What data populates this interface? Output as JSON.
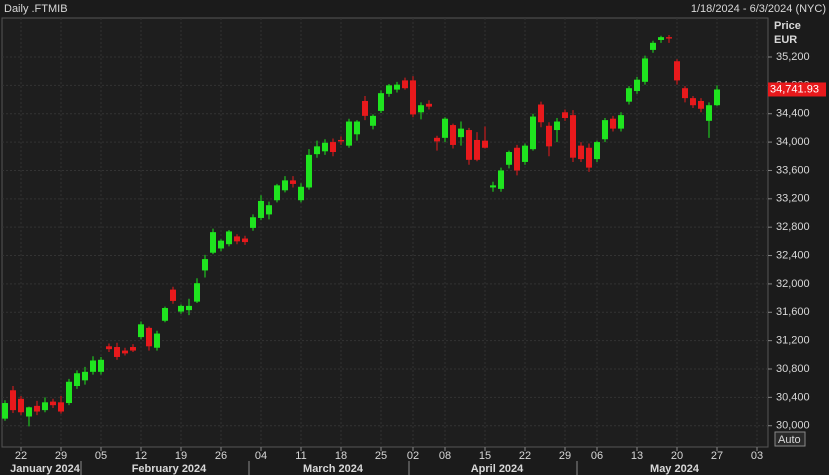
{
  "chart_data": {
    "type": "candlestick",
    "title": "Daily .FTMIB",
    "date_range": "1/18/2024 - 6/3/2024 (NYC)",
    "y_axis_label": "Price",
    "y_axis_unit": "EUR",
    "scale_button": "Auto",
    "up_color": "#1fe41f",
    "down_color": "#e8191c",
    "grid": true,
    "x": [
      "2024-01-18",
      "2024-01-19",
      "2024-01-22",
      "2024-01-23",
      "2024-01-24",
      "2024-01-25",
      "2024-01-26",
      "2024-01-29",
      "2024-01-30",
      "2024-01-31",
      "2024-02-01",
      "2024-02-02",
      "2024-02-05",
      "2024-02-06",
      "2024-02-07",
      "2024-02-08",
      "2024-02-09",
      "2024-02-12",
      "2024-02-13",
      "2024-02-14",
      "2024-02-15",
      "2024-02-16",
      "2024-02-19",
      "2024-02-20",
      "2024-02-21",
      "2024-02-22",
      "2024-02-23",
      "2024-02-26",
      "2024-02-27",
      "2024-02-28",
      "2024-02-29",
      "2024-03-01",
      "2024-03-04",
      "2024-03-05",
      "2024-03-06",
      "2024-03-07",
      "2024-03-08",
      "2024-03-11",
      "2024-03-12",
      "2024-03-13",
      "2024-03-14",
      "2024-03-15",
      "2024-03-18",
      "2024-03-19",
      "2024-03-20",
      "2024-03-21",
      "2024-03-22",
      "2024-03-25",
      "2024-03-26",
      "2024-03-27",
      "2024-03-28",
      "2024-04-02",
      "2024-04-03",
      "2024-04-04",
      "2024-04-05",
      "2024-04-08",
      "2024-04-09",
      "2024-04-10",
      "2024-04-11",
      "2024-04-12",
      "2024-04-15",
      "2024-04-16",
      "2024-04-17",
      "2024-04-18",
      "2024-04-19",
      "2024-04-22",
      "2024-04-23",
      "2024-04-24",
      "2024-04-25",
      "2024-04-26",
      "2024-04-29",
      "2024-04-30",
      "2024-05-02",
      "2024-05-03",
      "2024-05-06",
      "2024-05-07",
      "2024-05-08",
      "2024-05-09",
      "2024-05-10",
      "2024-05-13",
      "2024-05-14",
      "2024-05-15",
      "2024-05-16",
      "2024-05-17",
      "2024-05-20",
      "2024-05-21",
      "2024-05-22",
      "2024-05-23",
      "2024-05-24",
      "2024-05-27"
    ],
    "open": [
      30100,
      30500,
      30380,
      30130,
      30280,
      30220,
      30340,
      30330,
      30320,
      30560,
      30640,
      30760,
      30760,
      31120,
      31110,
      31060,
      31110,
      31250,
      31380,
      31100,
      31480,
      31920,
      31610,
      31630,
      31750,
      32190,
      32440,
      32500,
      32560,
      32670,
      32640,
      32790,
      32930,
      32980,
      33180,
      33320,
      33460,
      33180,
      33360,
      33830,
      33870,
      34000,
      34030,
      33950,
      34110,
      34580,
      34230,
      34440,
      34680,
      34740,
      34870,
      34870,
      34420,
      34540,
      34060,
      34060,
      34240,
      34070,
      34170,
      34030,
      34020,
      33360,
      33340,
      33680,
      33920,
      33720,
      33900,
      34530,
      34230,
      34170,
      34420,
      34380,
      33950,
      33920,
      33760,
      34040,
      34330,
      34190,
      34570,
      34720,
      34850,
      35300,
      35440,
      35480,
      35140,
      34760,
      34620,
      34580,
      34300,
      34520
    ],
    "high": [
      30360,
      30560,
      30420,
      30270,
      30350,
      30400,
      30380,
      30420,
      30660,
      30780,
      30830,
      30980,
      30970,
      31160,
      31170,
      31100,
      31150,
      31470,
      31400,
      31340,
      31680,
      31960,
      31710,
      31790,
      32080,
      32410,
      32780,
      32630,
      32760,
      32700,
      32680,
      32980,
      33250,
      33160,
      33410,
      33520,
      33520,
      33420,
      33900,
      34020,
      34040,
      34050,
      34080,
      34330,
      34310,
      34650,
      34390,
      34730,
      34820,
      34850,
      34910,
      34930,
      34560,
      34590,
      34090,
      34350,
      34260,
      34290,
      34200,
      34140,
      34220,
      33440,
      33640,
      33880,
      33960,
      33980,
      34400,
      34570,
      34280,
      34340,
      34460,
      34450,
      34000,
      33980,
      34020,
      34340,
      34370,
      34420,
      34790,
      34920,
      35220,
      35430,
      35500,
      35510,
      35170,
      34790,
      34650,
      34620,
      34560,
      34800
    ],
    "low": [
      30070,
      30180,
      30150,
      29990,
      30150,
      30190,
      30250,
      30170,
      30290,
      30520,
      30580,
      30720,
      30720,
      31040,
      30930,
      30990,
      31040,
      31220,
      31060,
      31060,
      31460,
      31720,
      31580,
      31560,
      31730,
      32090,
      32420,
      32460,
      32530,
      32560,
      32550,
      32750,
      32900,
      32910,
      33150,
      33290,
      33360,
      33150,
      33330,
      33780,
      33820,
      33800,
      33960,
      33920,
      34020,
      34310,
      34180,
      34410,
      34640,
      34700,
      34740,
      34350,
      34320,
      34460,
      33880,
      34000,
      33910,
      33950,
      33680,
      33730,
      33910,
      33300,
      33300,
      33630,
      33530,
      33680,
      33880,
      34210,
      33800,
      34000,
      34300,
      33720,
      33720,
      33580,
      33720,
      34000,
      34150,
      34150,
      34530,
      34680,
      34810,
      35260,
      35400,
      35400,
      34810,
      34560,
      34480,
      34420,
      34060,
      34510
    ],
    "close": [
      30320,
      30220,
      30190,
      30260,
      30200,
      30330,
      30290,
      30200,
      30620,
      30740,
      30760,
      30920,
      30930,
      31080,
      30970,
      31020,
      31060,
      31430,
      31120,
      31300,
      31660,
      31760,
      31690,
      31690,
      32010,
      32350,
      32730,
      32610,
      32740,
      32600,
      32590,
      32940,
      33170,
      33110,
      33390,
      33460,
      33410,
      33370,
      33820,
      33940,
      33990,
      33860,
      34010,
      34290,
      34290,
      34370,
      34370,
      34690,
      34800,
      34810,
      34760,
      34390,
      34520,
      34500,
      34010,
      34330,
      33960,
      34190,
      33750,
      33750,
      33920,
      33390,
      33600,
      33860,
      33600,
      33950,
      34360,
      34280,
      33940,
      34290,
      34340,
      33780,
      33760,
      33640,
      34000,
      34310,
      34190,
      34380,
      34760,
      34880,
      35180,
      35400,
      35480,
      35460,
      34870,
      34620,
      34520,
      34470,
      34520,
      34741.93
    ],
    "last_price": {
      "value": 34741.93,
      "label": "34,741.93"
    },
    "ylim": [
      29700,
      35750
    ],
    "yticks": [
      {
        "value": 30000,
        "label": "30,000"
      },
      {
        "value": 30400,
        "label": "30,400"
      },
      {
        "value": 30800,
        "label": "30,800"
      },
      {
        "value": 31200,
        "label": "31,200"
      },
      {
        "value": 31600,
        "label": "31,600"
      },
      {
        "value": 32000,
        "label": "32,000"
      },
      {
        "value": 32400,
        "label": "32,400"
      },
      {
        "value": 32800,
        "label": "32,800"
      },
      {
        "value": 33200,
        "label": "33,200"
      },
      {
        "value": 33600,
        "label": "33,600"
      },
      {
        "value": 34000,
        "label": "34,000"
      },
      {
        "value": 34400,
        "label": "34,400"
      },
      {
        "value": 34800,
        "label": "34,800"
      },
      {
        "value": 35200,
        "label": "35,200"
      }
    ],
    "xticks": [
      {
        "value": "2024-01-22",
        "label": "22"
      },
      {
        "value": "2024-01-29",
        "label": "29"
      },
      {
        "value": "2024-02-05",
        "label": "05"
      },
      {
        "value": "2024-02-12",
        "label": "12"
      },
      {
        "value": "2024-02-19",
        "label": "19"
      },
      {
        "value": "2024-02-26",
        "label": "26"
      },
      {
        "value": "2024-03-04",
        "label": "04"
      },
      {
        "value": "2024-03-11",
        "label": "11"
      },
      {
        "value": "2024-03-18",
        "label": "18"
      },
      {
        "value": "2024-03-25",
        "label": "25"
      },
      {
        "value": "2024-04-02",
        "label": "02"
      },
      {
        "value": "2024-04-08",
        "label": "08"
      },
      {
        "value": "2024-04-15",
        "label": "15"
      },
      {
        "value": "2024-04-22",
        "label": "22"
      },
      {
        "value": "2024-04-29",
        "label": "29"
      },
      {
        "value": "2024-05-06",
        "label": "06"
      },
      {
        "value": "2024-05-13",
        "label": "13"
      },
      {
        "value": "2024-05-20",
        "label": "20"
      },
      {
        "value": "2024-05-27",
        "label": "27"
      },
      {
        "value": "2024-06-03",
        "label": "03"
      }
    ],
    "month_ticks": [
      {
        "value": "2024-01-18",
        "label": "January 2024"
      },
      {
        "value": "2024-02-01",
        "label": "February 2024"
      },
      {
        "value": "2024-03-01",
        "label": "March 2024"
      },
      {
        "value": "2024-04-02",
        "label": "April 2024"
      },
      {
        "value": "2024-05-02",
        "label": "May 2024"
      }
    ]
  }
}
